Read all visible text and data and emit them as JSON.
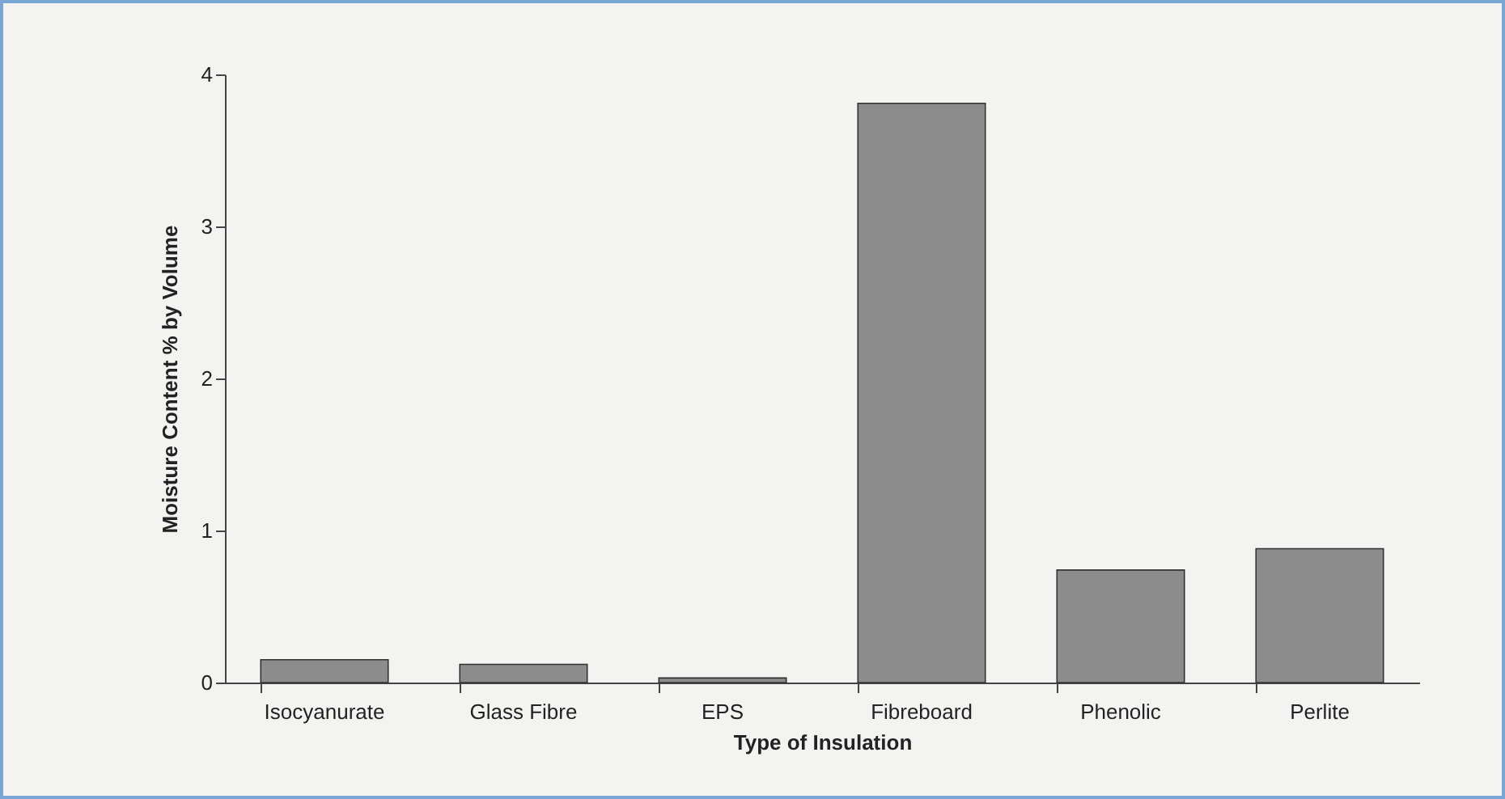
{
  "chart_data": {
    "type": "bar",
    "xlabel": "Type of Insulation",
    "ylabel": "Moisture Content % by Volume",
    "categories": [
      "Isocyanurate",
      "Glass Fibre",
      "EPS",
      "Fibreboard",
      "Phenolic",
      "Perlite"
    ],
    "values": [
      0.15,
      0.12,
      0.03,
      3.81,
      0.74,
      0.88
    ],
    "color": "#8c8c8c",
    "ylim": [
      0,
      4
    ],
    "yticks": [
      0,
      1,
      2,
      3,
      4
    ],
    "grid": false
  }
}
